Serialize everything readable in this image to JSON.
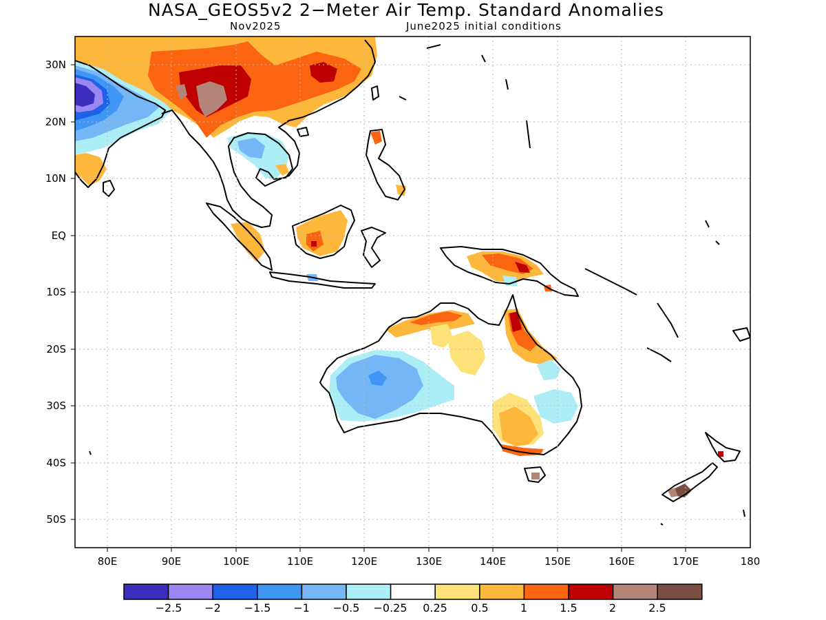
{
  "header": {
    "title": "NASA_GEOS5v2 2−Meter Air Temp. Standard Anomalies",
    "valid_month": "Nov2025",
    "initial_conditions": "June2025 initial conditions"
  },
  "map": {
    "lon_range": [
      75,
      180
    ],
    "lat_range": [
      -55,
      35
    ],
    "lon_ticks": [
      {
        "value": 80,
        "label": "80E"
      },
      {
        "value": 90,
        "label": "90E"
      },
      {
        "value": 100,
        "label": "100E"
      },
      {
        "value": 110,
        "label": "110E"
      },
      {
        "value": 120,
        "label": "120E"
      },
      {
        "value": 130,
        "label": "130E"
      },
      {
        "value": 140,
        "label": "140E"
      },
      {
        "value": 150,
        "label": "150E"
      },
      {
        "value": 160,
        "label": "160E"
      },
      {
        "value": 170,
        "label": "170E"
      },
      {
        "value": 180,
        "label": "180"
      }
    ],
    "lat_ticks": [
      {
        "value": 30,
        "label": "30N"
      },
      {
        "value": 20,
        "label": "20N"
      },
      {
        "value": 10,
        "label": "10N"
      },
      {
        "value": 0,
        "label": "EQ"
      },
      {
        "value": -10,
        "label": "10S"
      },
      {
        "value": -20,
        "label": "20S"
      },
      {
        "value": -30,
        "label": "30S"
      },
      {
        "value": -40,
        "label": "40S"
      },
      {
        "value": -50,
        "label": "50S"
      }
    ],
    "gridlines": "dotted"
  },
  "colorbar": {
    "colors": [
      "#3b2dbd",
      "#9c87f2",
      "#1e62e8",
      "#3f96f5",
      "#74b6f6",
      "#adeef6",
      "#ffffff",
      "#fde27a",
      "#fdb73b",
      "#fb6410",
      "#be0000",
      "#b38478",
      "#7a4e43"
    ],
    "labels": [
      "−2.5",
      "−2",
      "−1.5",
      "−1",
      "−0.5",
      "−0.25",
      "0.25",
      "0.5",
      "1",
      "1.5",
      "2",
      "2.5"
    ]
  }
}
